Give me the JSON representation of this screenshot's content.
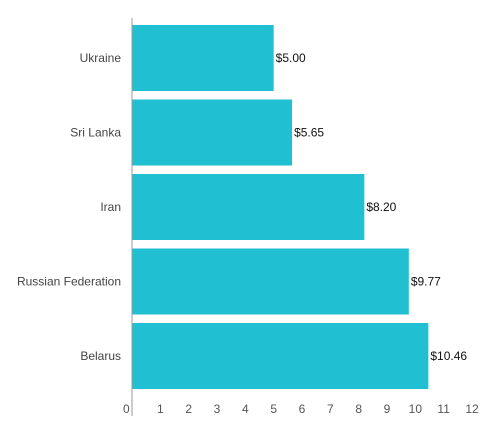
{
  "chart_data": {
    "type": "bar",
    "orientation": "horizontal",
    "categories": [
      "Ukraine",
      "Sri Lanka",
      "Iran",
      "Russian Federation",
      "Belarus"
    ],
    "values": [
      5.0,
      5.65,
      8.2,
      9.77,
      10.46
    ],
    "value_labels": [
      "$5.00",
      "$5.65",
      "$8.20",
      "$9.77",
      "$10.46"
    ],
    "x_ticks": [
      "0",
      "1",
      "2",
      "3",
      "4",
      "5",
      "6",
      "7",
      "8",
      "9",
      "10",
      "11",
      "12"
    ],
    "xlim": [
      0,
      12
    ],
    "grid": false,
    "legend": "none",
    "bar_color": "#21BFD2",
    "axis_color": "#999999"
  }
}
